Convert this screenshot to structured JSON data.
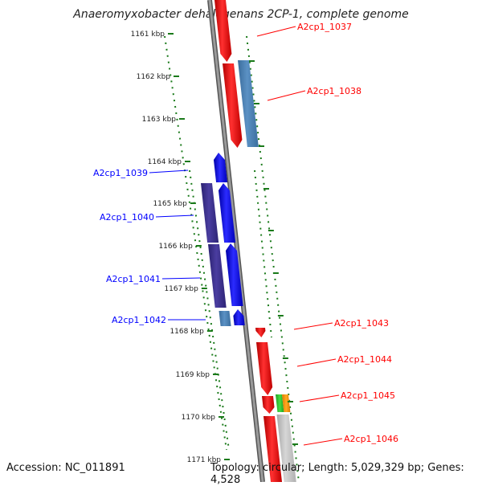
{
  "title": "Anaeromyxobacter dehalogenans 2CP-1, complete genome",
  "accession": "Accession: NC_011891",
  "topology": "Topology: circular; Length: 5,029,329 bp; Genes: 4,528",
  "colors": {
    "forward_strand": "#ff0000",
    "reverse_strand": "#0000ff",
    "steel_blue": "#4a7fb5",
    "purple": "#3b2f8f",
    "gray_gene": "#c2c2c2",
    "green_gene": "#33cc33",
    "orange_gene": "#ff9900",
    "tick_green": "#1a7a1a",
    "backbone": "#888888"
  },
  "kbp_labels": [
    "1161 kbp",
    "1162 kbp",
    "1163 kbp",
    "1164 kbp",
    "1165 kbp",
    "1166 kbp",
    "1167 kbp",
    "1168 kbp",
    "1169 kbp",
    "1170 kbp",
    "1171 kbp"
  ],
  "genes": [
    {
      "name": "A2cp1_1037",
      "side": "right",
      "color": "red"
    },
    {
      "name": "A2cp1_1038",
      "side": "right",
      "color": "red"
    },
    {
      "name": "A2cp1_1039",
      "side": "left",
      "color": "blue"
    },
    {
      "name": "A2cp1_1040",
      "side": "left",
      "color": "blue"
    },
    {
      "name": "A2cp1_1041",
      "side": "left",
      "color": "blue"
    },
    {
      "name": "A2cp1_1042",
      "side": "left",
      "color": "blue"
    },
    {
      "name": "A2cp1_1043",
      "side": "right",
      "color": "red"
    },
    {
      "name": "A2cp1_1044",
      "side": "right",
      "color": "red"
    },
    {
      "name": "A2cp1_1045",
      "side": "right",
      "color": "red"
    },
    {
      "name": "A2cp1_1046",
      "side": "right",
      "color": "red"
    }
  ]
}
